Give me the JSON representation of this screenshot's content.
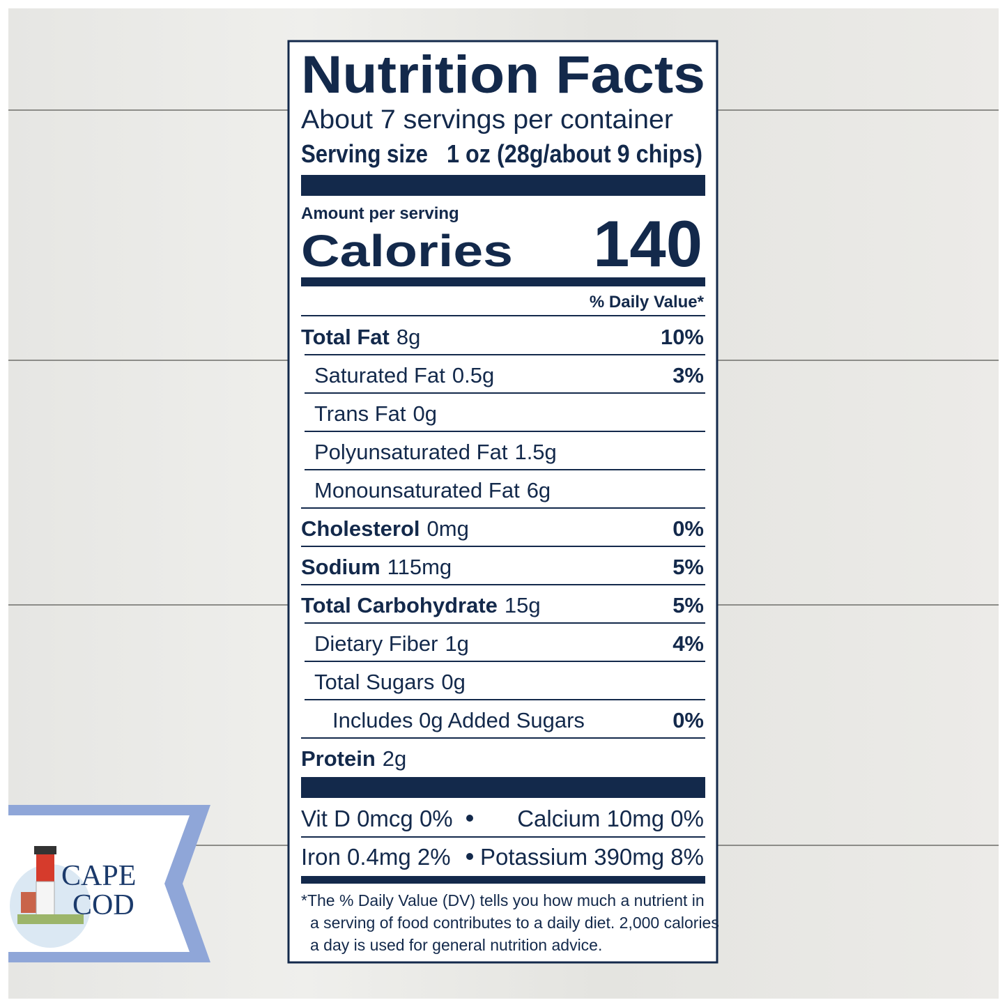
{
  "title": "Nutrition Facts",
  "servings": "About 7 servings per container",
  "serving_size": {
    "label": "Serving size",
    "value": "1 oz (28g/about 9 chips)"
  },
  "amount_per_serving": "Amount per serving",
  "calories": {
    "label": "Calories",
    "value": 140
  },
  "daily_value_header": "% Daily Value*",
  "nutrients": [
    {
      "name": "Total Fat",
      "amount": "8g",
      "dv": "10%"
    },
    {
      "name": "Saturated Fat",
      "amount": "0.5g",
      "dv": "3%"
    },
    {
      "name": "Trans Fat",
      "amount": "0g"
    },
    {
      "name": "Polyunsaturated Fat",
      "amount": "1.5g"
    },
    {
      "name": "Monounsaturated Fat",
      "amount": "6g"
    },
    {
      "name": "Cholesterol",
      "amount": "0mg",
      "dv": "0%"
    },
    {
      "name": "Sodium",
      "amount": "115mg",
      "dv": "5%"
    },
    {
      "name": "Total Carbohydrate",
      "amount": "15g",
      "dv": "5%"
    },
    {
      "name": "Dietary Fiber",
      "amount": "1g",
      "dv": "4%"
    },
    {
      "name": "Total Sugars",
      "amount": "0g"
    },
    {
      "name": "Includes 0g Added Sugars",
      "dv": "0%"
    },
    {
      "name": "Protein",
      "amount": "2g"
    }
  ],
  "minerals": [
    [
      "Vit D 0mcg 0%",
      "Calcium 10mg 0%"
    ],
    [
      "Iron 0.4mg 2%",
      "Potassium 390mg 8%"
    ]
  ],
  "footnote": [
    "*The % Daily Value (DV) tells you how much a nutrient in",
    "a serving of food contributes to a daily diet. 2,000 calories",
    "a day is used for general nutrition advice."
  ],
  "brand": [
    "CAPE",
    "COD"
  ]
}
